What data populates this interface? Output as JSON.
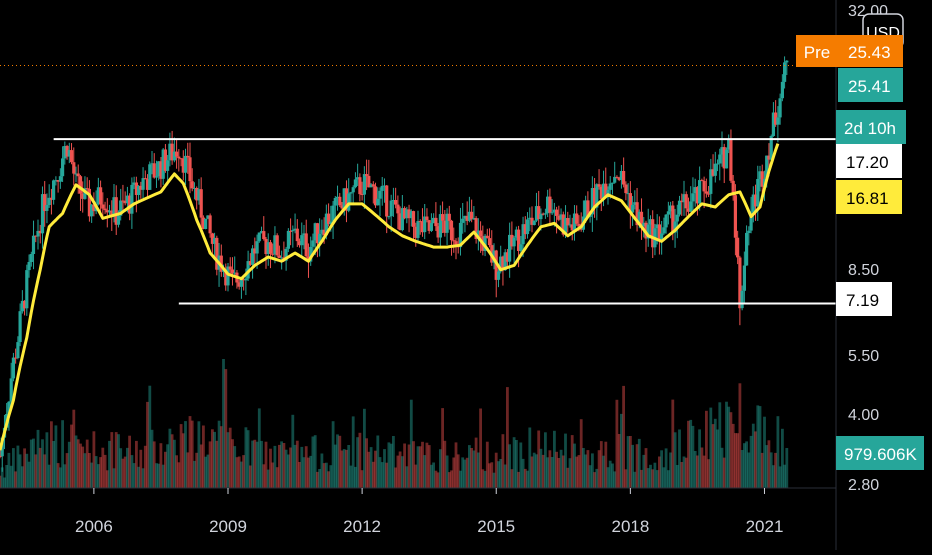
{
  "colors": {
    "background": "#000000",
    "up": "#26a69a",
    "down": "#ef5350",
    "ma": "#ffeb3b",
    "level_line": "#ffffff",
    "premarket": "#f57c00",
    "last_price": "#26a69a",
    "axis_text": "#d1d4dc"
  },
  "price_scale": {
    "currency_label": "USD",
    "log_scale": true,
    "ticks": [
      "32.00",
      "8.50",
      "5.50",
      "4.00",
      "2.80"
    ]
  },
  "badges": {
    "pre_label": "Pre",
    "pre_value": "25.43",
    "last_price": "25.41",
    "countdown": "2d 10h",
    "level_upper": "17.20",
    "ma_value": "16.81",
    "level_lower": "7.19",
    "volume": "979.606K"
  },
  "time_axis": {
    "labels": [
      "2006",
      "2009",
      "2012",
      "2015",
      "2018",
      "2021"
    ]
  },
  "chart_data": {
    "type": "candlestick",
    "title": "",
    "xlabel": "",
    "ylabel": "",
    "y_scale": "log",
    "ylim": [
      2.7,
      36
    ],
    "x_range": [
      2003.9,
      2022.6
    ],
    "horizontal_lines": [
      {
        "value": 17.2,
        "x_start": 2005.1,
        "label": "17.20"
      },
      {
        "value": 7.19,
        "x_start": 2007.9,
        "label": "7.19"
      }
    ],
    "premarket_line": {
      "value": 25.43
    },
    "price_path": [
      [
        2003.9,
        3.2
      ],
      [
        2004.1,
        4.5
      ],
      [
        2004.3,
        6.0
      ],
      [
        2004.6,
        9.0
      ],
      [
        2004.9,
        12.5
      ],
      [
        2005.2,
        14.5
      ],
      [
        2005.4,
        16.8
      ],
      [
        2005.6,
        13.5
      ],
      [
        2005.9,
        12.0
      ],
      [
        2006.2,
        12.8
      ],
      [
        2006.5,
        11.6
      ],
      [
        2006.8,
        12.4
      ],
      [
        2007.1,
        13.8
      ],
      [
        2007.4,
        14.6
      ],
      [
        2007.7,
        15.8
      ],
      [
        2007.9,
        16.6
      ],
      [
        2008.2,
        13.5
      ],
      [
        2008.5,
        11.0
      ],
      [
        2008.7,
        9.5
      ],
      [
        2008.9,
        8.8
      ],
      [
        2009.1,
        8.0
      ],
      [
        2009.3,
        8.4
      ],
      [
        2009.6,
        9.6
      ],
      [
        2009.9,
        10.0
      ],
      [
        2010.2,
        9.4
      ],
      [
        2010.5,
        10.4
      ],
      [
        2010.8,
        9.6
      ],
      [
        2011.1,
        11.0
      ],
      [
        2011.4,
        11.8
      ],
      [
        2011.7,
        12.6
      ],
      [
        2012.0,
        13.6
      ],
      [
        2012.3,
        13.0
      ],
      [
        2012.6,
        12.2
      ],
      [
        2012.9,
        11.2
      ],
      [
        2013.2,
        10.8
      ],
      [
        2013.5,
        10.6
      ],
      [
        2013.8,
        11.0
      ],
      [
        2014.1,
        10.4
      ],
      [
        2014.4,
        11.2
      ],
      [
        2014.7,
        10.0
      ],
      [
        2015.0,
        8.8
      ],
      [
        2015.3,
        9.6
      ],
      [
        2015.6,
        10.6
      ],
      [
        2015.9,
        11.4
      ],
      [
        2016.2,
        12.4
      ],
      [
        2016.5,
        11.0
      ],
      [
        2016.8,
        10.8
      ],
      [
        2017.1,
        12.2
      ],
      [
        2017.4,
        13.6
      ],
      [
        2017.7,
        14.6
      ],
      [
        2018.0,
        12.4
      ],
      [
        2018.3,
        10.6
      ],
      [
        2018.6,
        10.4
      ],
      [
        2018.9,
        11.2
      ],
      [
        2019.2,
        12.0
      ],
      [
        2019.5,
        12.6
      ],
      [
        2019.8,
        14.0
      ],
      [
        2020.0,
        15.0
      ],
      [
        2020.2,
        16.8
      ],
      [
        2020.3,
        13.0
      ],
      [
        2020.45,
        6.8
      ],
      [
        2020.6,
        10.5
      ],
      [
        2020.8,
        12.8
      ],
      [
        2021.0,
        15.0
      ],
      [
        2021.2,
        18.5
      ],
      [
        2021.35,
        22.0
      ],
      [
        2021.5,
        25.4
      ]
    ],
    "ma_path": [
      [
        2003.9,
        3.3
      ],
      [
        2004.2,
        4.3
      ],
      [
        2004.5,
        6.0
      ],
      [
        2004.8,
        8.6
      ],
      [
        2005.0,
        10.8
      ],
      [
        2005.3,
        11.6
      ],
      [
        2005.6,
        13.5
      ],
      [
        2005.9,
        12.8
      ],
      [
        2006.2,
        11.3
      ],
      [
        2006.6,
        11.6
      ],
      [
        2006.9,
        12.2
      ],
      [
        2007.2,
        12.6
      ],
      [
        2007.5,
        13.0
      ],
      [
        2007.8,
        14.3
      ],
      [
        2008.0,
        13.6
      ],
      [
        2008.3,
        11.2
      ],
      [
        2008.6,
        9.4
      ],
      [
        2009.0,
        8.4
      ],
      [
        2009.3,
        8.2
      ],
      [
        2009.6,
        8.8
      ],
      [
        2009.9,
        9.2
      ],
      [
        2010.2,
        9.0
      ],
      [
        2010.5,
        9.4
      ],
      [
        2010.8,
        9.0
      ],
      [
        2011.1,
        10.0
      ],
      [
        2011.4,
        11.2
      ],
      [
        2011.7,
        12.2
      ],
      [
        2012.0,
        12.2
      ],
      [
        2012.3,
        11.5
      ],
      [
        2012.6,
        10.8
      ],
      [
        2012.9,
        10.3
      ],
      [
        2013.2,
        10.0
      ],
      [
        2013.6,
        9.7
      ],
      [
        2013.9,
        9.7
      ],
      [
        2014.2,
        9.8
      ],
      [
        2014.5,
        10.5
      ],
      [
        2014.8,
        9.6
      ],
      [
        2015.1,
        8.6
      ],
      [
        2015.4,
        8.8
      ],
      [
        2015.7,
        9.8
      ],
      [
        2016.0,
        10.8
      ],
      [
        2016.3,
        11.0
      ],
      [
        2016.6,
        10.3
      ],
      [
        2016.9,
        10.8
      ],
      [
        2017.2,
        12.0
      ],
      [
        2017.5,
        12.8
      ],
      [
        2017.8,
        12.4
      ],
      [
        2018.1,
        11.3
      ],
      [
        2018.4,
        10.3
      ],
      [
        2018.7,
        10.0
      ],
      [
        2019.0,
        10.6
      ],
      [
        2019.3,
        11.4
      ],
      [
        2019.6,
        12.2
      ],
      [
        2019.9,
        12.0
      ],
      [
        2020.2,
        12.8
      ],
      [
        2020.45,
        13.0
      ],
      [
        2020.7,
        11.4
      ],
      [
        2020.9,
        12.0
      ],
      [
        2021.1,
        14.5
      ],
      [
        2021.3,
        16.8
      ]
    ],
    "volume_path": [
      [
        2003.9,
        0.16
      ],
      [
        2005.0,
        0.45
      ],
      [
        2006.0,
        0.36
      ],
      [
        2007.0,
        0.32
      ],
      [
        2008.0,
        0.48
      ],
      [
        2009.0,
        0.42
      ],
      [
        2010.0,
        0.3
      ],
      [
        2011.0,
        0.32
      ],
      [
        2012.0,
        0.36
      ],
      [
        2013.0,
        0.3
      ],
      [
        2014.0,
        0.28
      ],
      [
        2015.0,
        0.32
      ],
      [
        2016.0,
        0.36
      ],
      [
        2017.0,
        0.3
      ],
      [
        2018.0,
        0.34
      ],
      [
        2019.0,
        0.36
      ],
      [
        2020.0,
        0.55
      ],
      [
        2020.5,
        0.7
      ],
      [
        2021.0,
        0.52
      ],
      [
        2021.5,
        0.42
      ]
    ]
  }
}
